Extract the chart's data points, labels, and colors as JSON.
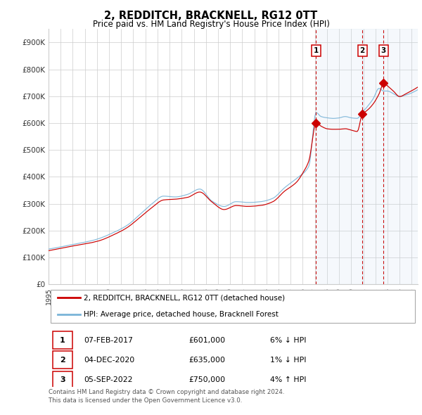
{
  "title": "2, REDDITCH, BRACKNELL, RG12 0TT",
  "subtitle": "Price paid vs. HM Land Registry's House Price Index (HPI)",
  "ylabel_ticks": [
    "£0",
    "£100K",
    "£200K",
    "£300K",
    "£400K",
    "£500K",
    "£600K",
    "£700K",
    "£800K",
    "£900K"
  ],
  "ytick_values": [
    0,
    100000,
    200000,
    300000,
    400000,
    500000,
    600000,
    700000,
    800000,
    900000
  ],
  "ylim": [
    0,
    950000
  ],
  "xlim_start": 1995.0,
  "xlim_end": 2025.5,
  "purchase_dates": [
    2017.1,
    2020.92,
    2022.67
  ],
  "purchase_prices": [
    601000,
    635000,
    750000
  ],
  "purchase_labels": [
    "1",
    "2",
    "3"
  ],
  "purchase_label_dates": [
    "07-FEB-2017",
    "04-DEC-2020",
    "05-SEP-2022"
  ],
  "purchase_label_prices": [
    "£601,000",
    "£635,000",
    "£750,000"
  ],
  "purchase_label_hpi": [
    "6% ↓ HPI",
    "1% ↓ HPI",
    "4% ↑ HPI"
  ],
  "hpi_color": "#7ab4d8",
  "price_color": "#cc0000",
  "marker_color": "#cc0000",
  "vline_color": "#cc0000",
  "shading_color": "#ddeeff",
  "legend_label_price": "2, REDDITCH, BRACKNELL, RG12 0TT (detached house)",
  "legend_label_hpi": "HPI: Average price, detached house, Bracknell Forest",
  "footnote": "Contains HM Land Registry data © Crown copyright and database right 2024.\nThis data is licensed under the Open Government Licence v3.0.",
  "bg_color": "#ffffff",
  "grid_color": "#cccccc",
  "axis_label_color": "#333333"
}
